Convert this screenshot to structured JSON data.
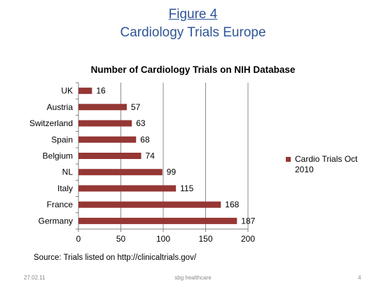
{
  "slide": {
    "figure_label": "Figure 4",
    "figure_title": "Cardiology Trials Europe",
    "source": "Source: Trials listed on http://clinicaltrials.gov/",
    "footer_date": "27.02.11",
    "footer_center": "sbg healthcare",
    "footer_page": "4"
  },
  "chart_data": {
    "type": "bar",
    "orientation": "horizontal",
    "title": "Number of Cardiology Trials on NIH Database",
    "categories": [
      "UK",
      "Austria",
      "Switzerland",
      "Spain",
      "Belgium",
      "NL",
      "Italy",
      "France",
      "Germany"
    ],
    "series": [
      {
        "name": "Cardio Trials Oct 2010",
        "values": [
          16,
          57,
          63,
          68,
          74,
          99,
          115,
          168,
          187
        ],
        "color": "#953735"
      }
    ],
    "xlim": [
      0,
      200
    ],
    "xticks": [
      0,
      50,
      100,
      150,
      200
    ],
    "grid": true,
    "legend": "right",
    "data_labels": true
  }
}
